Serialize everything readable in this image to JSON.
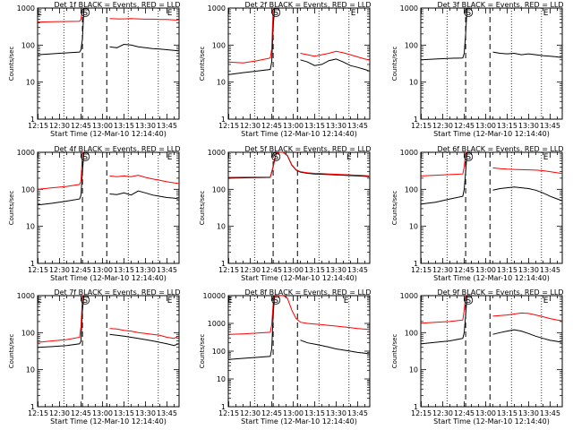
{
  "page": {
    "title": ""
  },
  "common": {
    "x_tick_labels": [
      "12:15",
      "12:30",
      "12:45",
      "13:00",
      "13:15",
      "13:30",
      "13:45"
    ],
    "x_ticks_min": [
      0,
      15,
      30,
      45,
      60,
      75,
      90
    ],
    "y_tick_labels": [
      "1",
      "10",
      "100",
      "1000"
    ],
    "y_ticks": [
      1,
      10,
      100,
      1000
    ],
    "xlabel": "Start Time (12-Mar-10 12:14:40)",
    "ylabel": "Counts/sec",
    "markers": [
      "E",
      "S",
      "E"
    ],
    "colors": {
      "events": "#000000",
      "lld": "#ff0000"
    }
  },
  "chart_data": [
    {
      "type": "line",
      "title": "Det 1f BLACK = Events, RED = LLD",
      "xlim": [
        "12:14:40",
        "13:53"
      ],
      "ylim": [
        1,
        1000
      ],
      "yscale": "log",
      "series": [
        {
          "name": "Events",
          "color": "#000000",
          "x": [
            0,
            15,
            29,
            30,
            31,
            32,
            33,
            49,
            50,
            55,
            60,
            65,
            70,
            75,
            80,
            85,
            90,
            95,
            98
          ],
          "y": [
            55,
            60,
            65,
            75,
            150,
            1000,
            null,
            null,
            90,
            85,
            105,
            100,
            90,
            85,
            80,
            78,
            75,
            72,
            70
          ]
        },
        {
          "name": "LLD",
          "color": "#ff0000",
          "x": [
            0,
            15,
            29,
            30,
            31,
            32,
            49,
            50,
            55,
            60,
            65,
            70,
            75,
            80,
            85,
            90,
            95,
            98
          ],
          "y": [
            420,
            430,
            440,
            500,
            1000,
            null,
            null,
            520,
            510,
            510,
            520,
            510,
            500,
            500,
            490,
            490,
            480,
            480
          ]
        }
      ],
      "markers": [
        {
          "label": "E",
          "x": 1
        },
        {
          "label": "S",
          "x": 33
        },
        {
          "label": "E",
          "x": 92
        }
      ],
      "vlines_dashed": [
        31,
        48
      ],
      "vlines_dotted": [
        18,
        63,
        84
      ]
    },
    {
      "type": "line",
      "title": "Det 2f BLACK = Events, RED = LLD",
      "xlim": [
        "12:14:40",
        "13:53"
      ],
      "ylim": [
        1,
        1000
      ],
      "yscale": "log",
      "series": [
        {
          "name": "Events",
          "color": "#000000",
          "x": [
            0,
            10,
            20,
            29,
            30,
            31,
            32,
            33,
            49,
            50,
            55,
            60,
            65,
            70,
            75,
            80,
            85,
            90,
            95,
            98
          ],
          "y": [
            16,
            18,
            20,
            22,
            35,
            300,
            1000,
            null,
            null,
            40,
            35,
            28,
            30,
            38,
            42,
            35,
            28,
            25,
            22,
            20
          ]
        },
        {
          "name": "LLD",
          "color": "#ff0000",
          "x": [
            0,
            10,
            20,
            29,
            30,
            31,
            32,
            49,
            50,
            55,
            60,
            65,
            70,
            75,
            80,
            85,
            90,
            95,
            98
          ],
          "y": [
            35,
            33,
            38,
            45,
            80,
            1000,
            null,
            null,
            60,
            55,
            50,
            55,
            60,
            68,
            62,
            55,
            48,
            42,
            40
          ]
        }
      ],
      "markers": [
        {
          "label": "S",
          "x": 33
        },
        {
          "label": "E",
          "x": 87
        }
      ],
      "vlines_dashed": [
        31,
        48
      ],
      "vlines_dotted": [
        18,
        63,
        84
      ]
    },
    {
      "type": "line",
      "title": "Det 3f BLACK = Events, RED = LLD",
      "xlim": [
        "12:14:40",
        "13:53"
      ],
      "ylim": [
        1,
        1000
      ],
      "yscale": "log",
      "series": [
        {
          "name": "Events",
          "color": "#000000",
          "x": [
            0,
            10,
            20,
            29,
            30,
            31,
            32,
            33,
            49,
            50,
            55,
            60,
            65,
            70,
            75,
            80,
            85,
            90,
            95,
            98
          ],
          "y": [
            40,
            42,
            44,
            45,
            60,
            200,
            1000,
            null,
            null,
            65,
            60,
            58,
            60,
            55,
            58,
            55,
            52,
            50,
            48,
            46
          ]
        }
      ],
      "markers": [
        {
          "label": "S",
          "x": 33
        },
        {
          "label": "E",
          "x": 87
        }
      ],
      "vlines_dashed": [
        31,
        48
      ],
      "vlines_dotted": [
        18,
        63,
        84
      ]
    },
    {
      "type": "line",
      "title": "Det 4f BLACK = Events, RED = LLD",
      "xlim": [
        "12:14:40",
        "13:53"
      ],
      "ylim": [
        1,
        1000
      ],
      "yscale": "log",
      "series": [
        {
          "name": "Events",
          "color": "#000000",
          "x": [
            0,
            10,
            20,
            29,
            30,
            31,
            32,
            33,
            49,
            50,
            55,
            60,
            65,
            70,
            75,
            80,
            85,
            90,
            95,
            98
          ],
          "y": [
            38,
            42,
            48,
            55,
            70,
            300,
            1000,
            null,
            null,
            75,
            72,
            80,
            70,
            90,
            80,
            70,
            65,
            60,
            58,
            55
          ]
        },
        {
          "name": "LLD",
          "color": "#ff0000",
          "x": [
            0,
            10,
            20,
            29,
            30,
            31,
            32,
            49,
            50,
            55,
            60,
            65,
            70,
            75,
            80,
            85,
            90,
            95,
            98
          ],
          "y": [
            100,
            110,
            120,
            135,
            170,
            1000,
            null,
            null,
            230,
            220,
            230,
            220,
            240,
            210,
            190,
            175,
            160,
            150,
            145
          ]
        }
      ],
      "markers": [
        {
          "label": "S",
          "x": 33
        },
        {
          "label": "E",
          "x": 92
        }
      ],
      "vlines_dashed": [
        31,
        48
      ],
      "vlines_dotted": [
        18,
        63,
        84
      ]
    },
    {
      "type": "line",
      "title": "Det 5f BLACK = Events, RED = LLD",
      "xlim": [
        "12:14:40",
        "13:53"
      ],
      "ylim": [
        1,
        1000
      ],
      "yscale": "log",
      "series": [
        {
          "name": "Events",
          "color": "#000000",
          "x": [
            0,
            15,
            29,
            31,
            33,
            35,
            38,
            41,
            44,
            47,
            50,
            55,
            60,
            65,
            70,
            75,
            80,
            85,
            90,
            95,
            98
          ],
          "y": [
            200,
            205,
            210,
            400,
            900,
            1000,
            1000,
            800,
            450,
            330,
            290,
            270,
            260,
            255,
            250,
            245,
            240,
            235,
            230,
            225,
            220
          ]
        },
        {
          "name": "LLD",
          "color": "#ff0000",
          "x": [
            0,
            15,
            29,
            31,
            33,
            35,
            38,
            41,
            44,
            47,
            50,
            55,
            60,
            65,
            70,
            75,
            80,
            85,
            90,
            95,
            98
          ],
          "y": [
            210,
            212,
            215,
            420,
            950,
            1000,
            1000,
            820,
            460,
            340,
            300,
            280,
            270,
            265,
            260,
            255,
            250,
            245,
            240,
            235,
            230
          ]
        }
      ],
      "markers": [
        {
          "label": "S",
          "x": 33
        },
        {
          "label": "E",
          "x": 84
        }
      ],
      "vlines_dashed": [
        31,
        48
      ],
      "vlines_dotted": [
        18,
        63,
        84
      ]
    },
    {
      "type": "line",
      "title": "Det 6f BLACK = Events, RED = LLD",
      "xlim": [
        "12:14:40",
        "13:53"
      ],
      "ylim": [
        1,
        1000
      ],
      "yscale": "log",
      "series": [
        {
          "name": "Events",
          "color": "#000000",
          "x": [
            0,
            10,
            20,
            29,
            30,
            31,
            32,
            33,
            49,
            50,
            55,
            60,
            65,
            70,
            75,
            80,
            85,
            90,
            95,
            98
          ],
          "y": [
            40,
            45,
            55,
            65,
            100,
            300,
            1000,
            null,
            null,
            95,
            105,
            110,
            115,
            110,
            105,
            95,
            80,
            65,
            55,
            50
          ]
        },
        {
          "name": "LLD",
          "color": "#ff0000",
          "x": [
            0,
            10,
            20,
            29,
            30,
            31,
            32,
            49,
            50,
            55,
            60,
            65,
            70,
            75,
            80,
            85,
            90,
            95,
            98
          ],
          "y": [
            230,
            240,
            250,
            260,
            400,
            1000,
            null,
            null,
            380,
            360,
            350,
            345,
            340,
            335,
            330,
            320,
            300,
            280,
            270
          ]
        }
      ],
      "markers": [
        {
          "label": "S",
          "x": 33
        },
        {
          "label": "E",
          "x": 87
        }
      ],
      "vlines_dashed": [
        31,
        48
      ],
      "vlines_dotted": [
        18,
        63,
        84
      ]
    },
    {
      "type": "line",
      "title": "Det 7f BLACK = Events, RED = LLD",
      "xlim": [
        "12:14:40",
        "13:53"
      ],
      "ylim": [
        1,
        1000
      ],
      "yscale": "log",
      "series": [
        {
          "name": "Events",
          "color": "#000000",
          "x": [
            0,
            10,
            20,
            29,
            30,
            31,
            32,
            33,
            49,
            50,
            55,
            60,
            65,
            70,
            75,
            80,
            85,
            90,
            95,
            98
          ],
          "y": [
            40,
            42,
            45,
            50,
            60,
            400,
            1000,
            null,
            null,
            90,
            85,
            80,
            75,
            70,
            65,
            60,
            55,
            50,
            45,
            50
          ]
        },
        {
          "name": "LLD",
          "color": "#ff0000",
          "x": [
            0,
            10,
            20,
            29,
            30,
            31,
            32,
            49,
            50,
            55,
            60,
            65,
            70,
            75,
            80,
            85,
            90,
            95,
            98
          ],
          "y": [
            55,
            60,
            65,
            75,
            150,
            1000,
            null,
            null,
            130,
            125,
            115,
            110,
            100,
            95,
            90,
            85,
            75,
            70,
            80
          ]
        }
      ],
      "markers": [
        {
          "label": "E",
          "x": 1
        },
        {
          "label": "S",
          "x": 33
        },
        {
          "label": "E",
          "x": 92
        }
      ],
      "vlines_dashed": [
        31,
        48
      ],
      "vlines_dotted": [
        18,
        63,
        84
      ]
    },
    {
      "type": "line",
      "title": "Det 8f BLACK = Events, RED = LLD",
      "xlim": [
        "12:14:40",
        "13:53"
      ],
      "ylim": [
        1,
        10000
      ],
      "yscale": "log",
      "y_tick_labels": [
        "1",
        "10",
        "100",
        "1000",
        "10000"
      ],
      "y_ticks": [
        1,
        10,
        100,
        1000,
        10000
      ],
      "series": [
        {
          "name": "Events",
          "color": "#000000",
          "x": [
            0,
            10,
            20,
            29,
            30,
            31,
            32,
            33,
            49,
            50,
            55,
            60,
            65,
            70,
            75,
            80,
            85,
            90,
            95,
            98
          ],
          "y": [
            50,
            55,
            60,
            65,
            120,
            2000,
            10000,
            null,
            null,
            250,
            200,
            180,
            160,
            140,
            120,
            110,
            100,
            90,
            85,
            80
          ]
        },
        {
          "name": "LLD",
          "color": "#ff0000",
          "x": [
            0,
            10,
            20,
            29,
            30,
            31,
            32,
            33,
            35,
            38,
            41,
            44,
            47,
            50,
            55,
            60,
            65,
            70,
            75,
            80,
            85,
            90,
            95,
            98
          ],
          "y": [
            400,
            420,
            450,
            480,
            900,
            5000,
            10000,
            10000,
            10000,
            10000,
            8000,
            3000,
            1500,
            1100,
            1000,
            950,
            900,
            850,
            800,
            750,
            700,
            650,
            620,
            600
          ]
        }
      ],
      "markers": [
        {
          "label": "E",
          "x": 1
        },
        {
          "label": "S",
          "x": 33
        },
        {
          "label": "E",
          "x": 82
        }
      ],
      "vlines_dashed": [
        31,
        48
      ],
      "vlines_dotted": [
        18,
        63,
        84
      ]
    },
    {
      "type": "line",
      "title": "Det 9f BLACK = Events, RED = LLD",
      "xlim": [
        "12:14:40",
        "13:53"
      ],
      "ylim": [
        1,
        1000
      ],
      "yscale": "log",
      "series": [
        {
          "name": "Events",
          "color": "#000000",
          "x": [
            0,
            10,
            20,
            29,
            30,
            31,
            32,
            33,
            49,
            50,
            55,
            60,
            65,
            70,
            75,
            80,
            85,
            90,
            95,
            98
          ],
          "y": [
            50,
            55,
            60,
            70,
            100,
            300,
            1000,
            null,
            null,
            90,
            100,
            110,
            120,
            110,
            95,
            80,
            70,
            62,
            58,
            55
          ]
        },
        {
          "name": "LLD",
          "color": "#ff0000",
          "x": [
            0,
            10,
            20,
            29,
            30,
            31,
            32,
            49,
            50,
            55,
            60,
            65,
            70,
            75,
            80,
            85,
            90,
            95,
            98
          ],
          "y": [
            180,
            190,
            200,
            220,
            400,
            1000,
            null,
            null,
            280,
            290,
            300,
            320,
            340,
            330,
            300,
            270,
            240,
            220,
            210
          ]
        }
      ],
      "markers": [
        {
          "label": "S",
          "x": 33
        },
        {
          "label": "E",
          "x": 87
        }
      ],
      "vlines_dashed": [
        31,
        48
      ],
      "vlines_dotted": [
        18,
        63,
        84
      ]
    }
  ]
}
